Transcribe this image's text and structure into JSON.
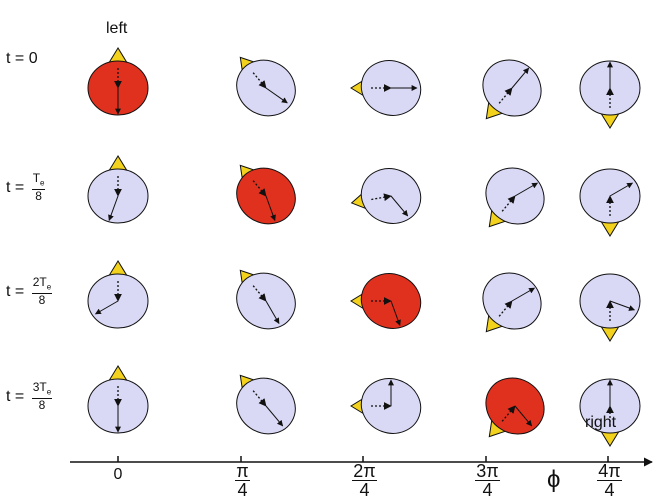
{
  "labels": {
    "left": "left",
    "right": "right",
    "axis_symbol": "ϕ"
  },
  "rows": [
    {
      "prefix": "t = ",
      "value": "0"
    },
    {
      "prefix": "t = ",
      "numerator": "T",
      "subscript": "e",
      "denominator": "8"
    },
    {
      "prefix": "t = ",
      "numerator": "2T",
      "subscript": "e",
      "denominator": "8"
    },
    {
      "prefix": "t = ",
      "numerator": "3T",
      "subscript": "e",
      "denominator": "8"
    }
  ],
  "columns": [
    {
      "value": "0"
    },
    {
      "numerator": "π",
      "denominator": "4"
    },
    {
      "numerator": "2π",
      "denominator": "4"
    },
    {
      "numerator": "3π",
      "denominator": "4"
    },
    {
      "numerator": "4π",
      "denominator": "4"
    }
  ]
}
